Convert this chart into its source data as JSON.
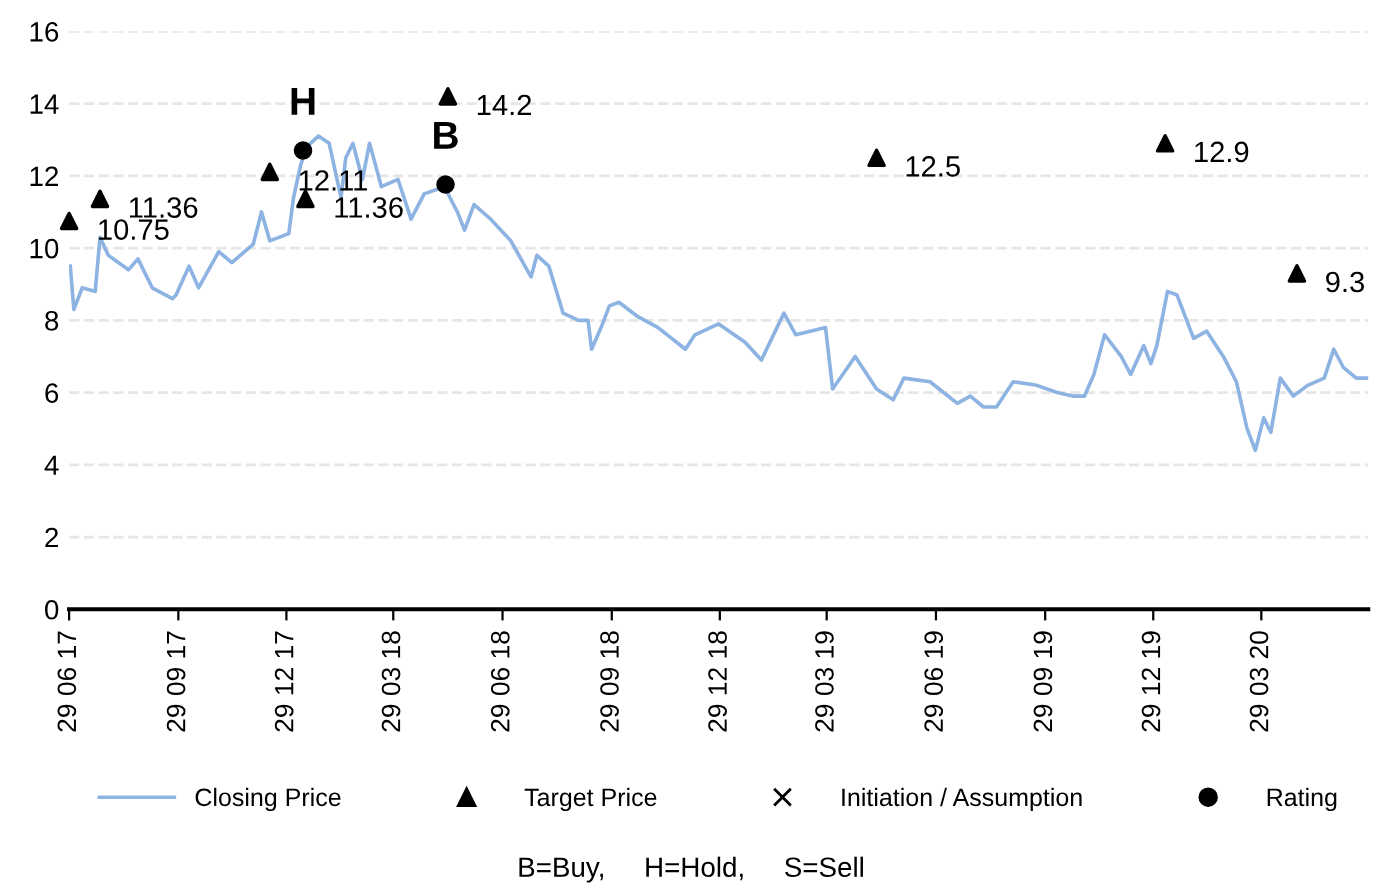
{
  "chart_data": {
    "type": "line",
    "ylim": [
      0,
      16
    ],
    "yticks": [
      0,
      2,
      4,
      6,
      8,
      10,
      12,
      14,
      16
    ],
    "xlim": [
      "2017-06-29",
      "2020-06-27"
    ],
    "xticks": [
      {
        "value": "2017-06-29",
        "label": "29 06 17"
      },
      {
        "value": "2017-09-29",
        "label": "29 09 17"
      },
      {
        "value": "2017-12-29",
        "label": "29 12 17"
      },
      {
        "value": "2018-03-29",
        "label": "29 03 18"
      },
      {
        "value": "2018-06-29",
        "label": "29 06 18"
      },
      {
        "value": "2018-09-29",
        "label": "29 09 18"
      },
      {
        "value": "2018-12-29",
        "label": "29 12 18"
      },
      {
        "value": "2019-03-29",
        "label": "29 03 19"
      },
      {
        "value": "2019-06-29",
        "label": "29 06 19"
      },
      {
        "value": "2019-09-29",
        "label": "29 09 19"
      },
      {
        "value": "2019-12-29",
        "label": "29 12 19"
      },
      {
        "value": "2020-03-29",
        "label": "29 03 20"
      }
    ],
    "grid": "y",
    "legend": "bottom",
    "series": [
      {
        "name": "Closing Price",
        "color": "#8db3e2",
        "marker": "none",
        "x": [
          "2017-06-30",
          "2017-07-03",
          "2017-07-10",
          "2017-07-21",
          "2017-07-25",
          "2017-08-01",
          "2017-08-18",
          "2017-08-26",
          "2017-09-07",
          "2017-09-24",
          "2017-09-27",
          "2017-10-08",
          "2017-10-16",
          "2017-11-02",
          "2017-11-13",
          "2017-12-01",
          "2017-12-08",
          "2017-12-15",
          "2017-12-31",
          "2018-01-04",
          "2018-01-10",
          "2018-01-15",
          "2018-01-25",
          "2018-02-03",
          "2018-02-13",
          "2018-02-17",
          "2018-02-23",
          "2018-03-03",
          "2018-03-09",
          "2018-03-19",
          "2018-04-02",
          "2018-04-13",
          "2018-04-24",
          "2018-05-11",
          "2018-05-22",
          "2018-05-28",
          "2018-06-05",
          "2018-06-19",
          "2018-07-06",
          "2018-07-23",
          "2018-07-28",
          "2018-08-07",
          "2018-08-19",
          "2018-09-01",
          "2018-09-09",
          "2018-09-12",
          "2018-09-20",
          "2018-09-27",
          "2018-10-05",
          "2018-10-21",
          "2018-11-07",
          "2018-11-30",
          "2018-12-08",
          "2018-12-28",
          "2019-01-19",
          "2019-02-02",
          "2019-02-21",
          "2019-03-03",
          "2019-03-28",
          "2019-04-03",
          "2019-04-22",
          "2019-05-10",
          "2019-05-24",
          "2019-06-02",
          "2019-06-24",
          "2019-07-17",
          "2019-07-28",
          "2019-08-08",
          "2019-08-19",
          "2019-09-02",
          "2019-09-22",
          "2019-10-09",
          "2019-10-23",
          "2019-11-01",
          "2019-11-09",
          "2019-11-18",
          "2019-12-02",
          "2019-12-10",
          "2019-12-21",
          "2019-12-27",
          "2020-01-01",
          "2020-01-10",
          "2020-01-18",
          "2020-02-01",
          "2020-02-12",
          "2020-02-26",
          "2020-03-08",
          "2020-03-17",
          "2020-03-24",
          "2020-03-31",
          "2020-04-06",
          "2020-04-14",
          "2020-04-25",
          "2020-05-07",
          "2020-05-21",
          "2020-05-29",
          "2020-06-06",
          "2020-06-17",
          "2020-06-27"
        ],
        "values": [
          9.5,
          8.3,
          8.9,
          8.8,
          10.3,
          9.8,
          9.4,
          9.7,
          8.9,
          8.6,
          8.7,
          9.5,
          8.9,
          9.9,
          9.6,
          10.1,
          11.0,
          10.2,
          10.4,
          11.4,
          12.3,
          12.8,
          13.1,
          12.9,
          11.4,
          12.5,
          12.9,
          11.9,
          12.9,
          11.7,
          11.9,
          10.8,
          11.5,
          11.7,
          11.0,
          10.5,
          11.2,
          10.8,
          10.2,
          9.2,
          9.8,
          9.5,
          8.2,
          8.0,
          8.0,
          7.2,
          7.8,
          8.4,
          8.5,
          8.1,
          7.8,
          7.2,
          7.6,
          7.9,
          7.4,
          6.9,
          8.2,
          7.6,
          7.8,
          6.1,
          7.0,
          6.1,
          5.8,
          6.4,
          6.3,
          5.7,
          5.9,
          5.6,
          5.6,
          6.3,
          6.2,
          6.0,
          5.9,
          5.9,
          6.5,
          7.6,
          7.0,
          6.5,
          7.3,
          6.8,
          7.3,
          8.8,
          8.7,
          7.5,
          7.7,
          7.0,
          6.3,
          5.0,
          4.4,
          5.3,
          4.9,
          6.4,
          5.9,
          6.2,
          6.4,
          7.2,
          6.7,
          6.4,
          6.4
        ]
      },
      {
        "name": "Target Price",
        "type": "scatter",
        "color": "#000000",
        "marker": "triangle",
        "x": [
          "2017-06-29",
          "2017-07-25",
          "2017-12-15",
          "2018-01-14",
          "2018-05-14",
          "2019-05-10",
          "2020-01-08",
          "2020-04-28"
        ],
        "values": [
          10.75,
          11.36,
          12.11,
          11.36,
          14.2,
          12.5,
          12.9,
          9.3
        ],
        "value_labels": [
          "10.75",
          "11.36",
          "12.11",
          "11.36",
          "14.2",
          "12.5",
          "12.9",
          "9.3"
        ]
      },
      {
        "name": "Initiation / Assumption",
        "type": "scatter",
        "color": "#000000",
        "marker": "cross"
      },
      {
        "name": "Rating",
        "type": "scatter",
        "color": "#000000",
        "marker": "circle",
        "x": [
          "2018-01-12",
          "2018-05-12"
        ],
        "values": [
          12.7,
          11.76
        ]
      }
    ],
    "annotations": [
      {
        "text": "H",
        "x": "2018-01-12",
        "y": 12.7
      },
      {
        "text": "B",
        "x": "2018-05-12",
        "y": 11.76
      },
      "B=Buy,     H=Hold,     S=Sell"
    ]
  }
}
